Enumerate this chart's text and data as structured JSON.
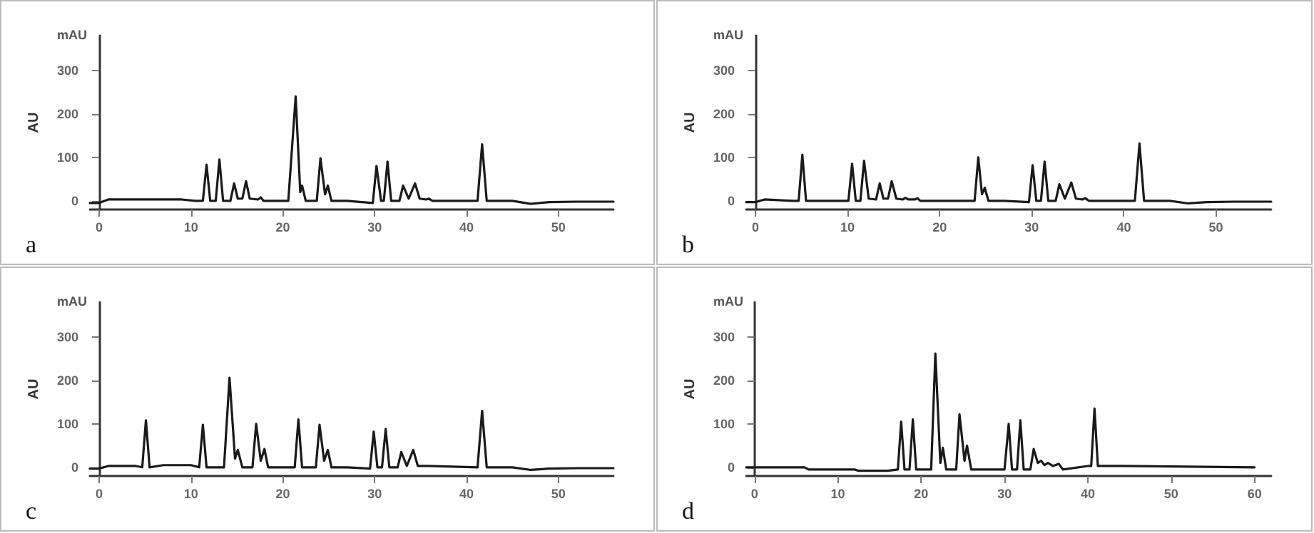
{
  "chart_data": [
    {
      "type": "line",
      "title": "a",
      "ylabel": "AU",
      "annotations": [
        "mAU"
      ],
      "color": "#1a1a1a",
      "xlim": [
        -1,
        56
      ],
      "ylim": [
        -20,
        380
      ],
      "xticks": [
        0,
        10,
        20,
        30,
        40,
        50
      ],
      "yticks": [
        0,
        100,
        200,
        300
      ],
      "grid": false,
      "marker": "none",
      "line_style": "solid",
      "x": [
        -1,
        0,
        1,
        5,
        9,
        10.5,
        11.3,
        11.7,
        12.1,
        12.7,
        13.1,
        13.5,
        14.3,
        14.7,
        15.1,
        15.6,
        16.0,
        16.4,
        17.3,
        17.6,
        17.9,
        20.6,
        21.4,
        21.9,
        22.1,
        22.5,
        23.7,
        24.1,
        24.6,
        24.9,
        25.3,
        27,
        29.8,
        30.2,
        30.7,
        31.0,
        31.4,
        31.8,
        32.7,
        33.1,
        33.7,
        34.4,
        34.9,
        35.6,
        35.9,
        36.3,
        41.2,
        41.7,
        42.2,
        45,
        47,
        49,
        52,
        56
      ],
      "values": [
        -5,
        -5,
        3,
        3,
        3,
        0,
        0,
        83,
        0,
        0,
        95,
        0,
        0,
        40,
        5,
        5,
        45,
        5,
        3,
        8,
        0,
        0,
        240,
        20,
        35,
        0,
        0,
        98,
        15,
        35,
        0,
        0,
        -5,
        80,
        0,
        0,
        90,
        0,
        0,
        35,
        5,
        40,
        5,
        3,
        5,
        0,
        0,
        130,
        0,
        0,
        -7,
        -3,
        -2,
        -2
      ]
    },
    {
      "type": "line",
      "title": "b",
      "ylabel": "AU",
      "annotations": [
        "mAU"
      ],
      "color": "#1a1a1a",
      "xlim": [
        -1,
        56
      ],
      "ylim": [
        -20,
        380
      ],
      "xticks": [
        0,
        10,
        20,
        30,
        40,
        50
      ],
      "yticks": [
        0,
        100,
        200,
        300
      ],
      "grid": false,
      "marker": "none",
      "line_style": "solid",
      "x": [
        -1,
        0,
        1,
        4,
        4.7,
        5.1,
        5.5,
        9,
        10.1,
        10.5,
        10.9,
        11.4,
        11.8,
        12.3,
        13.1,
        13.5,
        13.9,
        14.4,
        14.8,
        15.3,
        16.0,
        16.3,
        16.6,
        17.3,
        17.6,
        17.9,
        20,
        23.8,
        24.2,
        24.6,
        24.9,
        25.3,
        27,
        29.7,
        30.1,
        30.5,
        31.0,
        31.4,
        31.8,
        32.6,
        33.0,
        33.6,
        34.3,
        34.8,
        35.5,
        35.8,
        36.2,
        41.2,
        41.7,
        42.2,
        45,
        47,
        49,
        52,
        56
      ],
      "values": [
        -3,
        -3,
        3,
        0,
        0,
        106,
        0,
        0,
        0,
        85,
        0,
        0,
        92,
        5,
        3,
        40,
        5,
        5,
        45,
        5,
        3,
        7,
        3,
        3,
        6,
        0,
        0,
        0,
        100,
        15,
        30,
        0,
        0,
        -3,
        82,
        0,
        0,
        90,
        0,
        0,
        38,
        5,
        42,
        5,
        3,
        6,
        0,
        0,
        132,
        0,
        0,
        -6,
        -3,
        -2,
        -2
      ]
    },
    {
      "type": "line",
      "title": "c",
      "ylabel": "AU",
      "annotations": [
        "mAU"
      ],
      "color": "#1a1a1a",
      "xlim": [
        -1,
        56
      ],
      "ylim": [
        -20,
        380
      ],
      "xticks": [
        0,
        10,
        20,
        30,
        40,
        50
      ],
      "yticks": [
        0,
        100,
        200,
        300
      ],
      "grid": false,
      "marker": "none",
      "line_style": "solid",
      "x": [
        -1,
        0,
        1,
        4,
        4.7,
        5.1,
        5.5,
        7,
        10,
        10.9,
        11.3,
        11.7,
        13.6,
        14.2,
        14.8,
        15.1,
        15.6,
        16.7,
        17.1,
        17.6,
        18.0,
        18.4,
        21.3,
        21.7,
        22.1,
        23.6,
        24.0,
        24.5,
        24.9,
        25.3,
        27,
        29.5,
        29.9,
        30.3,
        30.8,
        31.2,
        31.6,
        32.5,
        32.9,
        33.5,
        34.2,
        34.7,
        35.8,
        41.2,
        41.7,
        42.2,
        45,
        47,
        49,
        52,
        56
      ],
      "values": [
        -3,
        -3,
        3,
        3,
        0,
        108,
        0,
        5,
        5,
        0,
        98,
        0,
        0,
        206,
        20,
        40,
        0,
        0,
        100,
        15,
        42,
        0,
        0,
        110,
        0,
        0,
        98,
        15,
        40,
        0,
        0,
        -3,
        82,
        0,
        0,
        88,
        0,
        0,
        35,
        3,
        40,
        3,
        3,
        0,
        130,
        0,
        0,
        -6,
        -3,
        -2,
        -2
      ]
    },
    {
      "type": "line",
      "title": "d",
      "ylabel": "AU",
      "annotations": [
        "mAU"
      ],
      "color": "#1a1a1a",
      "xlim": [
        -1,
        62
      ],
      "ylim": [
        -20,
        380
      ],
      "xticks": [
        0,
        10,
        20,
        30,
        40,
        50,
        60
      ],
      "yticks": [
        0,
        100,
        200,
        300
      ],
      "grid": false,
      "marker": "none",
      "line_style": "solid",
      "x": [
        -1,
        0,
        6,
        6.5,
        12,
        12.5,
        16,
        17.2,
        17.6,
        18.0,
        18.6,
        19.0,
        19.4,
        21.2,
        21.7,
        22.3,
        22.6,
        23.0,
        24.2,
        24.6,
        25.2,
        25.5,
        26.0,
        27,
        30,
        30.5,
        30.9,
        31.5,
        31.9,
        32.3,
        33.1,
        33.5,
        34.0,
        34.4,
        34.8,
        35.2,
        35.8,
        36.5,
        37,
        40,
        40.4,
        40.8,
        41.2,
        44,
        60
      ],
      "values": [
        0,
        0,
        0,
        -5,
        -5,
        -8,
        -8,
        -5,
        105,
        -5,
        -5,
        110,
        -5,
        -5,
        262,
        10,
        45,
        -5,
        -5,
        122,
        15,
        50,
        -5,
        -5,
        -5,
        100,
        -5,
        -5,
        108,
        -5,
        -5,
        42,
        10,
        15,
        5,
        10,
        3,
        8,
        -5,
        3,
        3,
        135,
        3,
        3,
        0
      ]
    }
  ]
}
